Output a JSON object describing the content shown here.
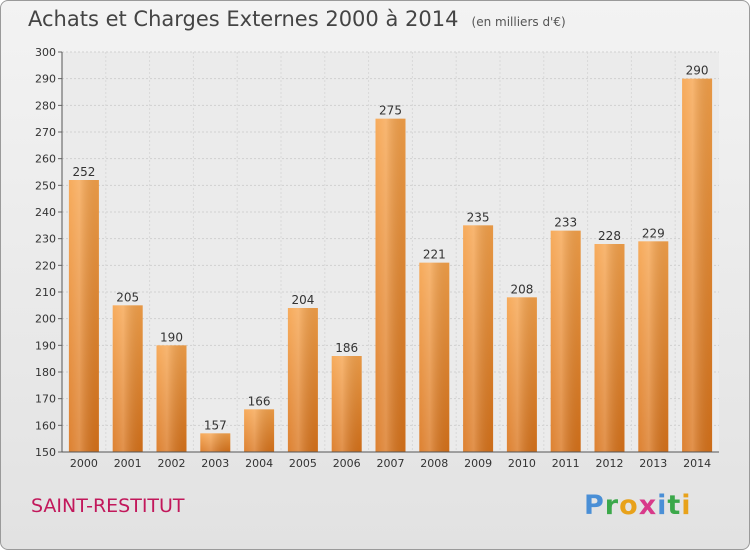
{
  "chart_data": {
    "type": "bar",
    "title": "Achats et Charges Externes 2000 à 2014",
    "subtitle": "(en milliers d'€)",
    "categories": [
      "2000",
      "2001",
      "2002",
      "2003",
      "2004",
      "2005",
      "2006",
      "2007",
      "2008",
      "2009",
      "2010",
      "2011",
      "2012",
      "2013",
      "2014"
    ],
    "values": [
      252,
      205,
      190,
      157,
      166,
      204,
      186,
      275,
      221,
      235,
      208,
      233,
      228,
      229,
      290
    ],
    "ylim": [
      150,
      300
    ],
    "yticks": [
      150,
      160,
      170,
      180,
      190,
      200,
      210,
      220,
      230,
      240,
      250,
      260,
      270,
      280,
      290,
      300
    ],
    "grid": true,
    "bar_color": "#f0902e"
  },
  "place_name": "SAINT-RESTITUT",
  "logo": {
    "text": "Proxiti"
  }
}
